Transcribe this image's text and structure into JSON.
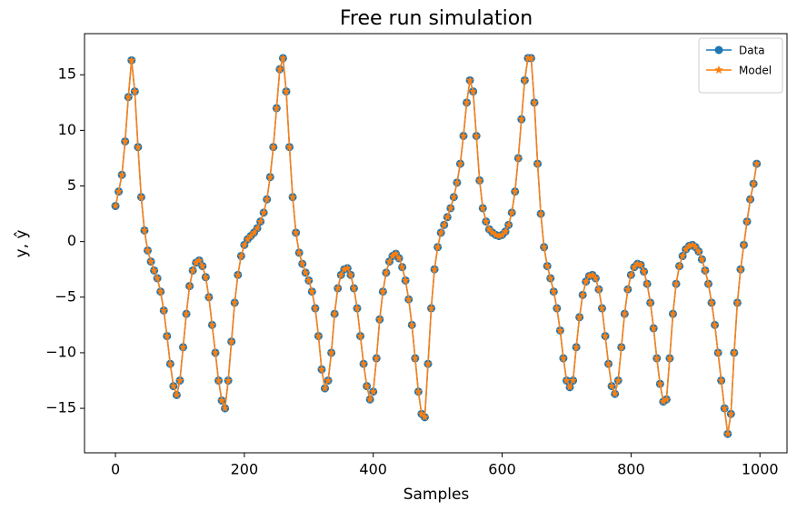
{
  "chart_data": {
    "type": "line",
    "title": "Free run simulation",
    "x_label": "Samples",
    "y_label": "y, ŷ",
    "legend": "upper right",
    "xlim": [
      -48,
      1042
    ],
    "ylim": [
      -19,
      18.7
    ],
    "xticks": [
      0,
      200,
      400,
      600,
      800,
      1000
    ],
    "yticks": [
      {
        "value": -15,
        "label": "−15"
      },
      {
        "value": -10,
        "label": "−10"
      },
      {
        "value": -5,
        "label": "−5"
      },
      0,
      5,
      10,
      15
    ],
    "x": [
      0,
      5,
      10,
      15,
      20,
      25,
      30,
      35,
      40,
      45,
      50,
      55,
      60,
      65,
      70,
      75,
      80,
      85,
      90,
      95,
      100,
      105,
      110,
      115,
      120,
      125,
      130,
      135,
      140,
      145,
      150,
      155,
      160,
      165,
      170,
      175,
      180,
      185,
      190,
      195,
      200,
      205,
      210,
      215,
      220,
      225,
      230,
      235,
      240,
      245,
      250,
      255,
      260,
      265,
      270,
      275,
      280,
      285,
      290,
      295,
      300,
      305,
      310,
      315,
      320,
      325,
      330,
      335,
      340,
      345,
      350,
      355,
      360,
      365,
      370,
      375,
      380,
      385,
      390,
      395,
      400,
      405,
      410,
      415,
      420,
      425,
      430,
      435,
      440,
      445,
      450,
      455,
      460,
      465,
      470,
      475,
      480,
      485,
      490,
      495,
      500,
      505,
      510,
      515,
      520,
      525,
      530,
      535,
      540,
      545,
      550,
      555,
      560,
      565,
      570,
      575,
      580,
      585,
      590,
      595,
      600,
      605,
      610,
      615,
      620,
      625,
      630,
      635,
      640,
      645,
      650,
      655,
      660,
      665,
      670,
      675,
      680,
      685,
      690,
      695,
      700,
      705,
      710,
      715,
      720,
      725,
      730,
      735,
      740,
      745,
      750,
      755,
      760,
      765,
      770,
      775,
      780,
      785,
      790,
      795,
      800,
      805,
      810,
      815,
      820,
      825,
      830,
      835,
      840,
      845,
      850,
      855,
      860,
      865,
      870,
      875,
      880,
      885,
      890,
      895,
      900,
      905,
      910,
      915,
      920,
      925,
      930,
      935,
      940,
      945,
      950,
      955,
      960,
      965,
      970,
      975,
      980,
      985,
      990,
      995
    ],
    "series": [
      {
        "name": "Data",
        "color": "#1f77b4",
        "marker": "o",
        "values": [
          3.2,
          4.5,
          6,
          9,
          13,
          16.3,
          13.5,
          8.5,
          4,
          1,
          -0.8,
          -1.8,
          -2.6,
          -3.3,
          -4.5,
          -6.2,
          -8.5,
          -11,
          -13,
          -13.8,
          -12.5,
          -9.5,
          -6.5,
          -4,
          -2.6,
          -1.9,
          -1.7,
          -2.2,
          -3.2,
          -5,
          -7.5,
          -10,
          -12.5,
          -14.3,
          -15,
          -12.5,
          -9,
          -5.5,
          -3,
          -1.3,
          -0.3,
          0.2,
          0.5,
          0.8,
          1.2,
          1.8,
          2.6,
          3.8,
          5.8,
          8.5,
          12,
          15.5,
          16.5,
          13.5,
          8.5,
          4,
          0.8,
          -1,
          -2,
          -2.8,
          -3.5,
          -4.5,
          -6,
          -8.5,
          -11.5,
          -13.2,
          -12.5,
          -10,
          -6.5,
          -4.2,
          -3,
          -2.5,
          -2.4,
          -3,
          -4.2,
          -6,
          -8.5,
          -11,
          -13,
          -14.2,
          -13.5,
          -10.5,
          -7,
          -4.5,
          -2.8,
          -1.8,
          -1.3,
          -1.1,
          -1.5,
          -2.3,
          -3.5,
          -5.2,
          -7.5,
          -10.5,
          -13.5,
          -15.5,
          -15.8,
          -11,
          -6,
          -2.5,
          -0.5,
          0.8,
          1.5,
          2.2,
          3,
          4,
          5.3,
          7,
          9.5,
          12.5,
          14.5,
          13.5,
          9.5,
          5.5,
          3,
          1.8,
          1.1,
          0.8,
          0.6,
          0.5,
          0.6,
          0.9,
          1.5,
          2.6,
          4.5,
          7.5,
          11,
          14.5,
          16.5,
          16.5,
          12.5,
          7,
          2.5,
          -0.5,
          -2.2,
          -3.3,
          -4.5,
          -6,
          -8,
          -10.5,
          -12.5,
          -13.1,
          -12.5,
          -9.5,
          -6.8,
          -4.8,
          -3.6,
          -3.1,
          -3,
          -3.3,
          -4.3,
          -6,
          -8.5,
          -11,
          -13,
          -13.7,
          -12.5,
          -9.5,
          -6.5,
          -4.3,
          -3,
          -2.3,
          -2,
          -2.1,
          -2.7,
          -3.8,
          -5.5,
          -7.8,
          -10.5,
          -12.8,
          -14.4,
          -14.2,
          -10.5,
          -6.5,
          -3.8,
          -2.2,
          -1.3,
          -0.7,
          -0.4,
          -0.3,
          -0.5,
          -0.9,
          -1.6,
          -2.6,
          -3.8,
          -5.5,
          -7.5,
          -10,
          -12.5,
          -15,
          -17.3,
          -15.5,
          -10,
          -5.5,
          -2.5,
          -0.3,
          1.8,
          3.8,
          5.2,
          7
        ]
      },
      {
        "name": "Model",
        "color": "#ff7f0e",
        "marker": "*",
        "values": [
          3.2,
          4.5,
          6,
          9,
          13,
          16.3,
          13.5,
          8.5,
          4,
          1,
          -0.8,
          -1.8,
          -2.6,
          -3.3,
          -4.5,
          -6.2,
          -8.5,
          -11,
          -13,
          -13.8,
          -12.5,
          -9.5,
          -6.5,
          -4,
          -2.6,
          -1.9,
          -1.7,
          -2.2,
          -3.2,
          -5,
          -7.5,
          -10,
          -12.5,
          -14.3,
          -15,
          -12.5,
          -9,
          -5.5,
          -3,
          -1.3,
          -0.3,
          0.2,
          0.5,
          0.8,
          1.2,
          1.8,
          2.6,
          3.8,
          5.8,
          8.5,
          12,
          15.5,
          16.5,
          13.5,
          8.5,
          4,
          0.8,
          -1,
          -2,
          -2.8,
          -3.5,
          -4.5,
          -6,
          -8.5,
          -11.5,
          -13.2,
          -12.5,
          -10,
          -6.5,
          -4.2,
          -3,
          -2.5,
          -2.4,
          -3,
          -4.2,
          -6,
          -8.5,
          -11,
          -13,
          -14.2,
          -13.5,
          -10.5,
          -7,
          -4.5,
          -2.8,
          -1.8,
          -1.3,
          -1.1,
          -1.5,
          -2.3,
          -3.5,
          -5.2,
          -7.5,
          -10.5,
          -13.5,
          -15.5,
          -15.8,
          -11,
          -6,
          -2.5,
          -0.5,
          0.8,
          1.5,
          2.2,
          3,
          4,
          5.3,
          7,
          9.5,
          12.5,
          14.5,
          13.5,
          9.5,
          5.5,
          3,
          1.8,
          1.1,
          0.8,
          0.6,
          0.5,
          0.6,
          0.9,
          1.5,
          2.6,
          4.5,
          7.5,
          11,
          14.5,
          16.5,
          16.5,
          12.5,
          7,
          2.5,
          -0.5,
          -2.2,
          -3.3,
          -4.5,
          -6,
          -8,
          -10.5,
          -12.5,
          -13.1,
          -12.5,
          -9.5,
          -6.8,
          -4.8,
          -3.6,
          -3.1,
          -3,
          -3.3,
          -4.3,
          -6,
          -8.5,
          -11,
          -13,
          -13.7,
          -12.5,
          -9.5,
          -6.5,
          -4.3,
          -3,
          -2.3,
          -2,
          -2.1,
          -2.7,
          -3.8,
          -5.5,
          -7.8,
          -10.5,
          -12.8,
          -14.4,
          -14.2,
          -10.5,
          -6.5,
          -3.8,
          -2.2,
          -1.3,
          -0.7,
          -0.4,
          -0.3,
          -0.5,
          -0.9,
          -1.6,
          -2.6,
          -3.8,
          -5.5,
          -7.5,
          -10,
          -12.5,
          -15,
          -17.3,
          -15.5,
          -10,
          -5.5,
          -2.5,
          -0.3,
          1.8,
          3.8,
          5.2,
          7
        ]
      }
    ]
  }
}
